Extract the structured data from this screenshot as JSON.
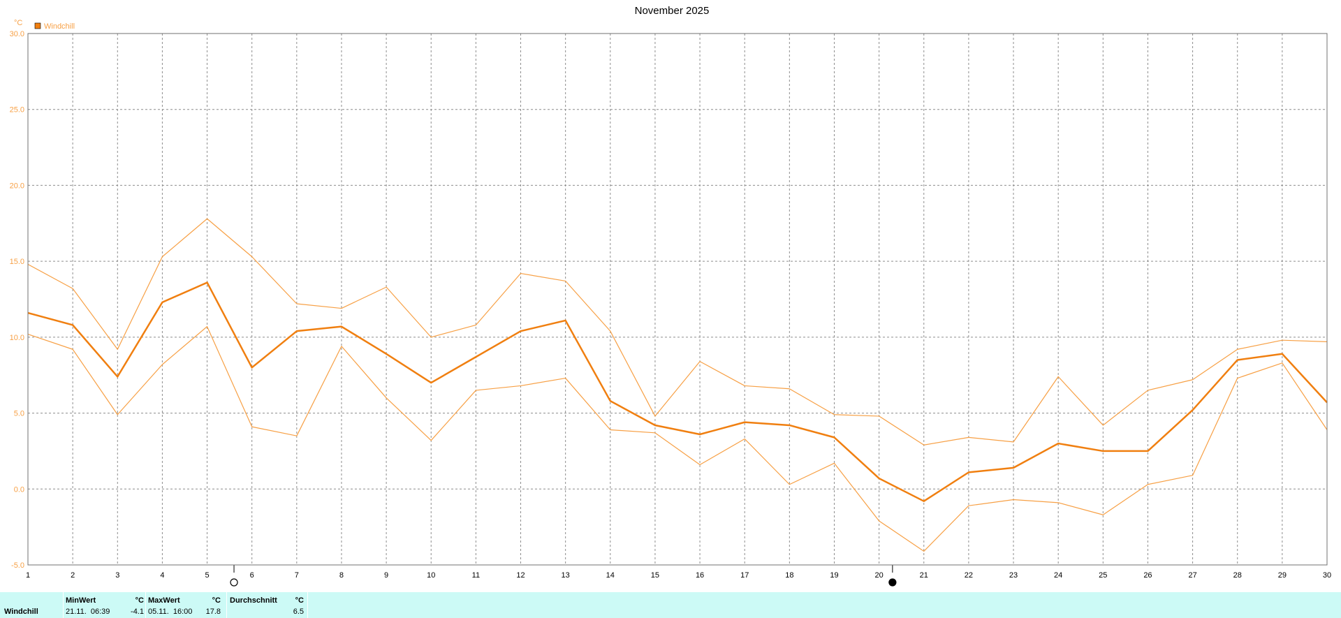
{
  "chart_data": {
    "type": "line",
    "title": "November 2025",
    "ylabel": "°C",
    "ylim": [
      -5,
      30
    ],
    "yticks": [
      "30.0",
      "25.0",
      "20.0",
      "15.0",
      "10.0",
      "5.0",
      "0.0",
      "-5.0"
    ],
    "ytick_values": [
      30,
      25,
      20,
      15,
      10,
      5,
      0,
      -5
    ],
    "x": [
      1,
      2,
      3,
      4,
      5,
      6,
      7,
      8,
      9,
      10,
      11,
      12,
      13,
      14,
      15,
      16,
      17,
      18,
      19,
      20,
      21,
      22,
      23,
      24,
      25,
      26,
      27,
      28,
      29,
      30
    ],
    "xlim": [
      1,
      30
    ],
    "grid": true,
    "legend": {
      "entries": [
        "Windchill"
      ],
      "placement": "top-left"
    },
    "moon_markers": [
      {
        "type": "full-moon",
        "day": 5.6
      },
      {
        "type": "new-moon",
        "day": 20.3
      }
    ],
    "series": [
      {
        "name": "Windchill",
        "role": "mean",
        "values": [
          11.6,
          10.8,
          7.4,
          12.3,
          13.6,
          8.0,
          10.4,
          10.7,
          8.9,
          7.0,
          8.7,
          10.4,
          11.1,
          5.8,
          4.2,
          3.6,
          4.4,
          4.2,
          3.4,
          0.7,
          -0.8,
          1.1,
          1.4,
          3.0,
          2.5,
          2.5,
          5.2,
          8.5,
          8.9,
          5.7
        ]
      },
      {
        "role": "max",
        "values": [
          14.8,
          13.2,
          9.2,
          15.3,
          17.8,
          15.3,
          12.2,
          11.9,
          13.3,
          10.0,
          10.8,
          14.2,
          13.7,
          10.4,
          4.8,
          8.4,
          6.8,
          6.6,
          4.9,
          4.8,
          2.9,
          3.4,
          3.1,
          7.4,
          4.2,
          6.5,
          7.2,
          9.2,
          9.8,
          9.7
        ]
      },
      {
        "role": "min",
        "values": [
          10.2,
          9.2,
          4.9,
          8.2,
          10.7,
          4.1,
          3.5,
          9.4,
          6.0,
          3.2,
          6.5,
          6.8,
          7.3,
          3.9,
          3.7,
          1.6,
          3.3,
          0.3,
          1.7,
          -2.1,
          -4.1,
          -1.1,
          -0.7,
          -0.9,
          -1.7,
          0.3,
          0.9,
          7.3,
          8.3,
          3.9
        ]
      }
    ],
    "colors": {
      "mean": "#f07f10",
      "max": "#f7a045",
      "min": "#f7a045",
      "grid": "#8c8c8c",
      "axis_text": "#f7a045",
      "legend_box": "#f07f10"
    }
  },
  "stats": {
    "row_label": "Windchill",
    "min": {
      "header": "MinWert",
      "unit": "°C",
      "when": "21.11.  06:39",
      "value": "-4.1"
    },
    "max": {
      "header": "MaxWert",
      "unit": "°C",
      "when": "05.11.  16:00",
      "value": "17.8"
    },
    "avg": {
      "header": "Durchschnitt",
      "unit": "°C",
      "value": "6.5"
    }
  }
}
